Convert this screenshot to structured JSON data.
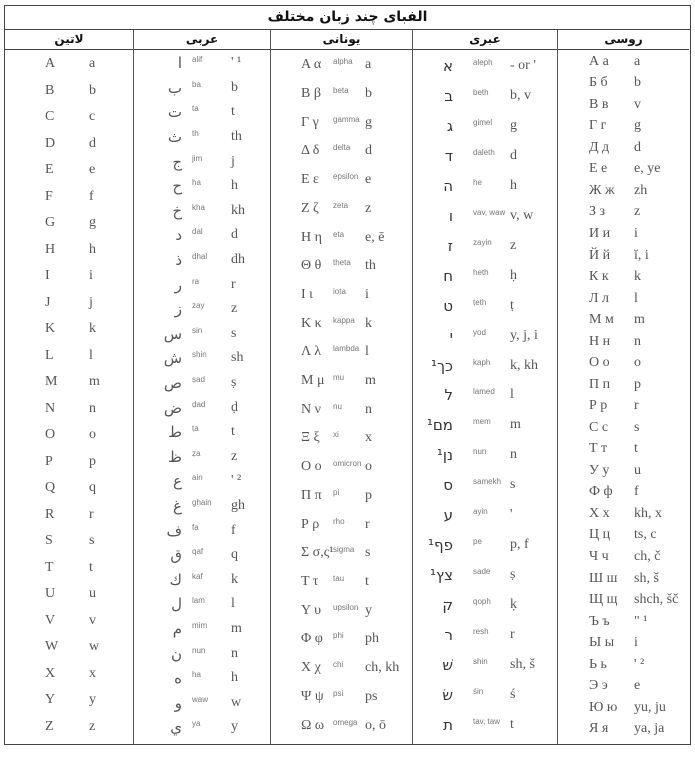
{
  "title": "الفبای چند زبان مختلف",
  "headers": {
    "latin": "لاتین",
    "arabic": "عربی",
    "greek": "یونانی",
    "hebrew": "عبری",
    "russian": "روسی"
  },
  "latin": [
    [
      "A",
      "a"
    ],
    [
      "B",
      "b"
    ],
    [
      "C",
      "c"
    ],
    [
      "D",
      "d"
    ],
    [
      "E",
      "e"
    ],
    [
      "F",
      "f"
    ],
    [
      "G",
      "g"
    ],
    [
      "H",
      "h"
    ],
    [
      "I",
      "i"
    ],
    [
      "J",
      "j"
    ],
    [
      "K",
      "k"
    ],
    [
      "L",
      "l"
    ],
    [
      "M",
      "m"
    ],
    [
      "N",
      "n"
    ],
    [
      "O",
      "o"
    ],
    [
      "P",
      "p"
    ],
    [
      "Q",
      "q"
    ],
    [
      "R",
      "r"
    ],
    [
      "S",
      "s"
    ],
    [
      "T",
      "t"
    ],
    [
      "U",
      "u"
    ],
    [
      "V",
      "v"
    ],
    [
      "W",
      "w"
    ],
    [
      "X",
      "x"
    ],
    [
      "Y",
      "y"
    ],
    [
      "Z",
      "z"
    ]
  ],
  "arabic": [
    [
      "ا",
      "alif",
      "' ¹"
    ],
    [
      "ب",
      "ba",
      "b"
    ],
    [
      "ت",
      "ta",
      "t"
    ],
    [
      "ث",
      "th",
      "th"
    ],
    [
      "ج",
      "jim",
      "j"
    ],
    [
      "ح",
      "ḥa",
      "h"
    ],
    [
      "خ",
      "kha",
      "kh"
    ],
    [
      "د",
      "dal",
      "d"
    ],
    [
      "ذ",
      "dhal",
      "dh"
    ],
    [
      "ر",
      "ra",
      "r"
    ],
    [
      "ز",
      "zay",
      "z"
    ],
    [
      "س",
      "sin",
      "s"
    ],
    [
      "ش",
      "shin",
      "sh"
    ],
    [
      "ص",
      "ṣad",
      "ṣ"
    ],
    [
      "ض",
      "ḍad",
      "ḍ"
    ],
    [
      "ط",
      "ṭa",
      "t"
    ],
    [
      "ظ",
      "ẓa",
      "z"
    ],
    [
      "ع",
      "ain",
      "' ²"
    ],
    [
      "غ",
      "ghain",
      "gh"
    ],
    [
      "ف",
      "fa",
      "f"
    ],
    [
      "ق",
      "qaf",
      "q"
    ],
    [
      "ك",
      "kaf",
      "k"
    ],
    [
      "ل",
      "lam",
      "l"
    ],
    [
      "م",
      "mim",
      "m"
    ],
    [
      "ن",
      "nun",
      "n"
    ],
    [
      "ه",
      "ha",
      "h"
    ],
    [
      "و",
      "waw",
      "w"
    ],
    [
      "ي",
      "ya",
      "y"
    ]
  ],
  "greek": [
    [
      "Α α",
      "alpha",
      "a"
    ],
    [
      "Β β",
      "beta",
      "b"
    ],
    [
      "Γ γ",
      "gamma",
      "g"
    ],
    [
      "Δ δ",
      "delta",
      "d"
    ],
    [
      "Ε ε",
      "epsilon",
      "e"
    ],
    [
      "Ζ ζ",
      "zeta",
      "z"
    ],
    [
      "Η η",
      "eta",
      "e, ē"
    ],
    [
      "Θ θ",
      "theta",
      "th"
    ],
    [
      "Ι ι",
      "iota",
      "i"
    ],
    [
      "Κ κ",
      "kappa",
      "k"
    ],
    [
      "Λ λ",
      "lambda",
      "l"
    ],
    [
      "Μ μ",
      "mu",
      "m"
    ],
    [
      "Ν ν",
      "nu",
      "n"
    ],
    [
      "Ξ ξ",
      "xi",
      "x"
    ],
    [
      "Ο ο",
      "omicron",
      "o"
    ],
    [
      "Π π",
      "pi",
      "p"
    ],
    [
      "Ρ ρ",
      "rho",
      "r"
    ],
    [
      "Σ σ,ς¹",
      "sigma",
      "s"
    ],
    [
      "Τ τ",
      "tau",
      "t"
    ],
    [
      "Υ υ",
      "upsilon",
      "y"
    ],
    [
      "Φ φ",
      "phi",
      "ph"
    ],
    [
      "Χ χ",
      "chi",
      "ch, kh"
    ],
    [
      "Ψ ψ",
      "psi",
      "ps"
    ],
    [
      "Ω ω",
      "omega",
      "o, ō"
    ]
  ],
  "hebrew": [
    [
      "א",
      "aleph",
      "- or '"
    ],
    [
      "ב",
      "beth",
      "b, v"
    ],
    [
      "ג",
      "gimel",
      "g"
    ],
    [
      "ד",
      "daleth",
      "d"
    ],
    [
      "ה",
      "he",
      "h"
    ],
    [
      "ו",
      "vav, waw",
      "v, w"
    ],
    [
      "ז",
      "zayin",
      "z"
    ],
    [
      "ח",
      "heth",
      "ḥ"
    ],
    [
      "ט",
      "ṭeth",
      "ṭ"
    ],
    [
      "י",
      "yod",
      "y, j, i"
    ],
    [
      "כך¹",
      "kaph",
      "k, kh"
    ],
    [
      "ל",
      "lamed",
      "l"
    ],
    [
      "מם¹",
      "mem",
      "m"
    ],
    [
      "נן¹",
      "nun",
      "n"
    ],
    [
      "ס",
      "samekh",
      "s"
    ],
    [
      "ע",
      "ayin",
      "'"
    ],
    [
      "פף¹",
      "pe",
      "p, f"
    ],
    [
      "צץ¹",
      "sade",
      "ṣ"
    ],
    [
      "ק",
      "qoph",
      "ḳ"
    ],
    [
      "ר",
      "resh",
      "r"
    ],
    [
      "שׁ",
      "shin",
      "sh, š"
    ],
    [
      "שׂ",
      "śin",
      "ś"
    ],
    [
      "ת",
      "tav, taw",
      "t"
    ]
  ],
  "russian": [
    [
      "А а",
      "a"
    ],
    [
      "Б б",
      "b"
    ],
    [
      "В в",
      "v"
    ],
    [
      "Г г",
      "g"
    ],
    [
      "Д д",
      "d"
    ],
    [
      "Е е",
      "e, ye"
    ],
    [
      "Ж ж",
      "zh"
    ],
    [
      "З з",
      "z"
    ],
    [
      "И и",
      "i"
    ],
    [
      "Й й",
      "ĭ, i"
    ],
    [
      "К к",
      "k"
    ],
    [
      "Л л",
      "l"
    ],
    [
      "М м",
      "m"
    ],
    [
      "Н н",
      "n"
    ],
    [
      "О о",
      "o"
    ],
    [
      "П п",
      "p"
    ],
    [
      "Р р",
      "r"
    ],
    [
      "С с",
      "s"
    ],
    [
      "Т т",
      "t"
    ],
    [
      "У у",
      "u"
    ],
    [
      "Ф ф",
      "f"
    ],
    [
      "Х х",
      "kh, x"
    ],
    [
      "Ц ц",
      "ts, c"
    ],
    [
      "Ч ч",
      "ch, č"
    ],
    [
      "Ш ш",
      "sh, š"
    ],
    [
      "Щ щ",
      "shch, šč"
    ],
    [
      "Ъ ъ",
      "\" ¹"
    ],
    [
      "Ы ы",
      "i"
    ],
    [
      "Ь ь",
      "' ²"
    ],
    [
      "Э э",
      "e"
    ],
    [
      "Ю ю",
      "yu, ju"
    ],
    [
      "Я я",
      "ya, ja"
    ]
  ]
}
